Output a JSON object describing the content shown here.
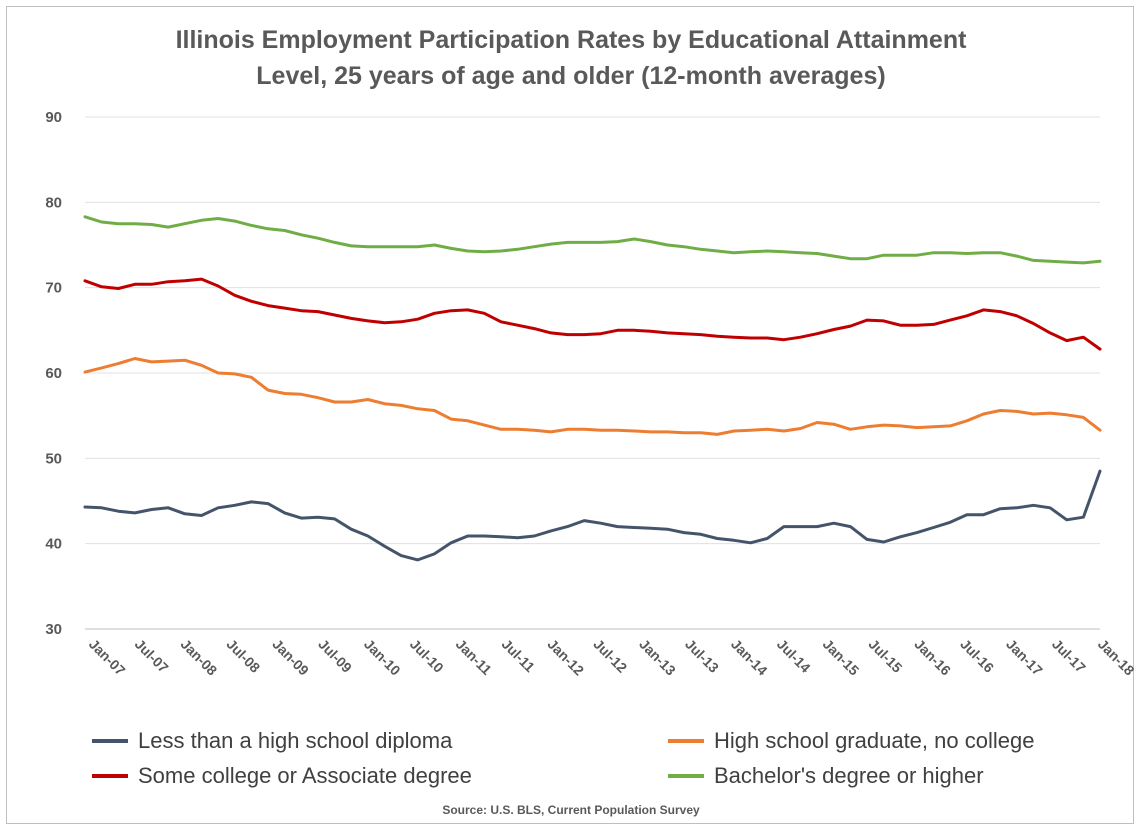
{
  "chart_data": {
    "type": "line",
    "title_line1": "Illinois Employment Participation Rates by Educational Attainment",
    "title_line2": "Level, 25 years of age and older (12-month averages)",
    "source": "Source: U.S. BLS, Current Population Survey",
    "ylim": [
      30,
      90
    ],
    "yticks": [
      30,
      40,
      50,
      60,
      70,
      80,
      90
    ],
    "grid": true,
    "legend_position": "bottom",
    "x_tick_labels": [
      "Jan-07",
      "Jul-07",
      "Jan-08",
      "Jul-08",
      "Jan-09",
      "Jul-09",
      "Jan-10",
      "Jul-10",
      "Jan-11",
      "Jul-11",
      "Jan-12",
      "Jul-12",
      "Jan-13",
      "Jul-13",
      "Jan-14",
      "Jul-14",
      "Jan-15",
      "Jul-15",
      "Jan-16",
      "Jul-16",
      "Jan-17",
      "Jul-17",
      "Jan-18"
    ],
    "series": [
      {
        "name": "Less than a high school diploma",
        "color": "#44546a",
        "values": [
          44.3,
          44.2,
          43.8,
          43.6,
          44.0,
          44.2,
          43.5,
          43.3,
          44.2,
          44.5,
          44.9,
          44.7,
          43.6,
          43.0,
          43.1,
          42.9,
          41.7,
          40.9,
          39.7,
          38.6,
          38.1,
          38.8,
          40.1,
          40.9,
          40.9,
          40.8,
          40.7,
          40.9,
          41.5,
          42.0,
          42.7,
          42.4,
          42.0,
          41.9,
          41.8,
          41.7,
          41.3,
          41.1,
          40.6,
          40.4,
          40.1,
          40.6,
          42.0,
          42.0,
          42.0,
          42.4,
          42.0,
          40.5,
          40.2,
          40.8,
          41.3,
          41.9,
          42.5,
          43.4,
          43.4,
          44.1,
          44.2,
          44.5,
          44.2,
          42.8,
          43.1,
          48.5
        ]
      },
      {
        "name": "High school graduate, no college",
        "color": "#ed7d31",
        "values": [
          60.1,
          60.6,
          61.1,
          61.7,
          61.3,
          61.4,
          61.5,
          60.9,
          60.0,
          59.9,
          59.5,
          58.0,
          57.6,
          57.5,
          57.1,
          56.6,
          56.6,
          56.9,
          56.4,
          56.2,
          55.8,
          55.6,
          54.6,
          54.4,
          53.9,
          53.4,
          53.4,
          53.3,
          53.1,
          53.4,
          53.4,
          53.3,
          53.3,
          53.2,
          53.1,
          53.1,
          53.0,
          53.0,
          52.8,
          53.2,
          53.3,
          53.4,
          53.2,
          53.5,
          54.2,
          54.0,
          53.4,
          53.7,
          53.9,
          53.8,
          53.6,
          53.7,
          53.8,
          54.4,
          55.2,
          55.6,
          55.5,
          55.2,
          55.3,
          55.1,
          54.8,
          53.3
        ]
      },
      {
        "name": "Some college or Associate degree",
        "color": "#c00000",
        "values": [
          70.8,
          70.1,
          69.9,
          70.4,
          70.4,
          70.7,
          70.8,
          71.0,
          70.2,
          69.1,
          68.4,
          67.9,
          67.6,
          67.3,
          67.2,
          66.8,
          66.4,
          66.1,
          65.9,
          66.0,
          66.3,
          67.0,
          67.3,
          67.4,
          67.0,
          66.0,
          65.6,
          65.2,
          64.7,
          64.5,
          64.5,
          64.6,
          65.0,
          65.0,
          64.9,
          64.7,
          64.6,
          64.5,
          64.3,
          64.2,
          64.1,
          64.1,
          63.9,
          64.2,
          64.6,
          65.1,
          65.5,
          66.2,
          66.1,
          65.6,
          65.6,
          65.7,
          66.2,
          66.7,
          67.4,
          67.2,
          66.7,
          65.8,
          64.7,
          63.8,
          64.2,
          62.8
        ]
      },
      {
        "name": "Bachelor's degree or higher",
        "color": "#70ad47",
        "values": [
          78.3,
          77.7,
          77.5,
          77.5,
          77.4,
          77.1,
          77.5,
          77.9,
          78.1,
          77.8,
          77.3,
          76.9,
          76.7,
          76.2,
          75.8,
          75.3,
          74.9,
          74.8,
          74.8,
          74.8,
          74.8,
          75.0,
          74.6,
          74.3,
          74.2,
          74.3,
          74.5,
          74.8,
          75.1,
          75.3,
          75.3,
          75.3,
          75.4,
          75.7,
          75.4,
          75.0,
          74.8,
          74.5,
          74.3,
          74.1,
          74.2,
          74.3,
          74.2,
          74.1,
          74.0,
          73.7,
          73.4,
          73.4,
          73.8,
          73.8,
          73.8,
          74.1,
          74.1,
          74.0,
          74.1,
          74.1,
          73.7,
          73.2,
          73.1,
          73.0,
          72.9,
          73.1
        ]
      }
    ]
  }
}
